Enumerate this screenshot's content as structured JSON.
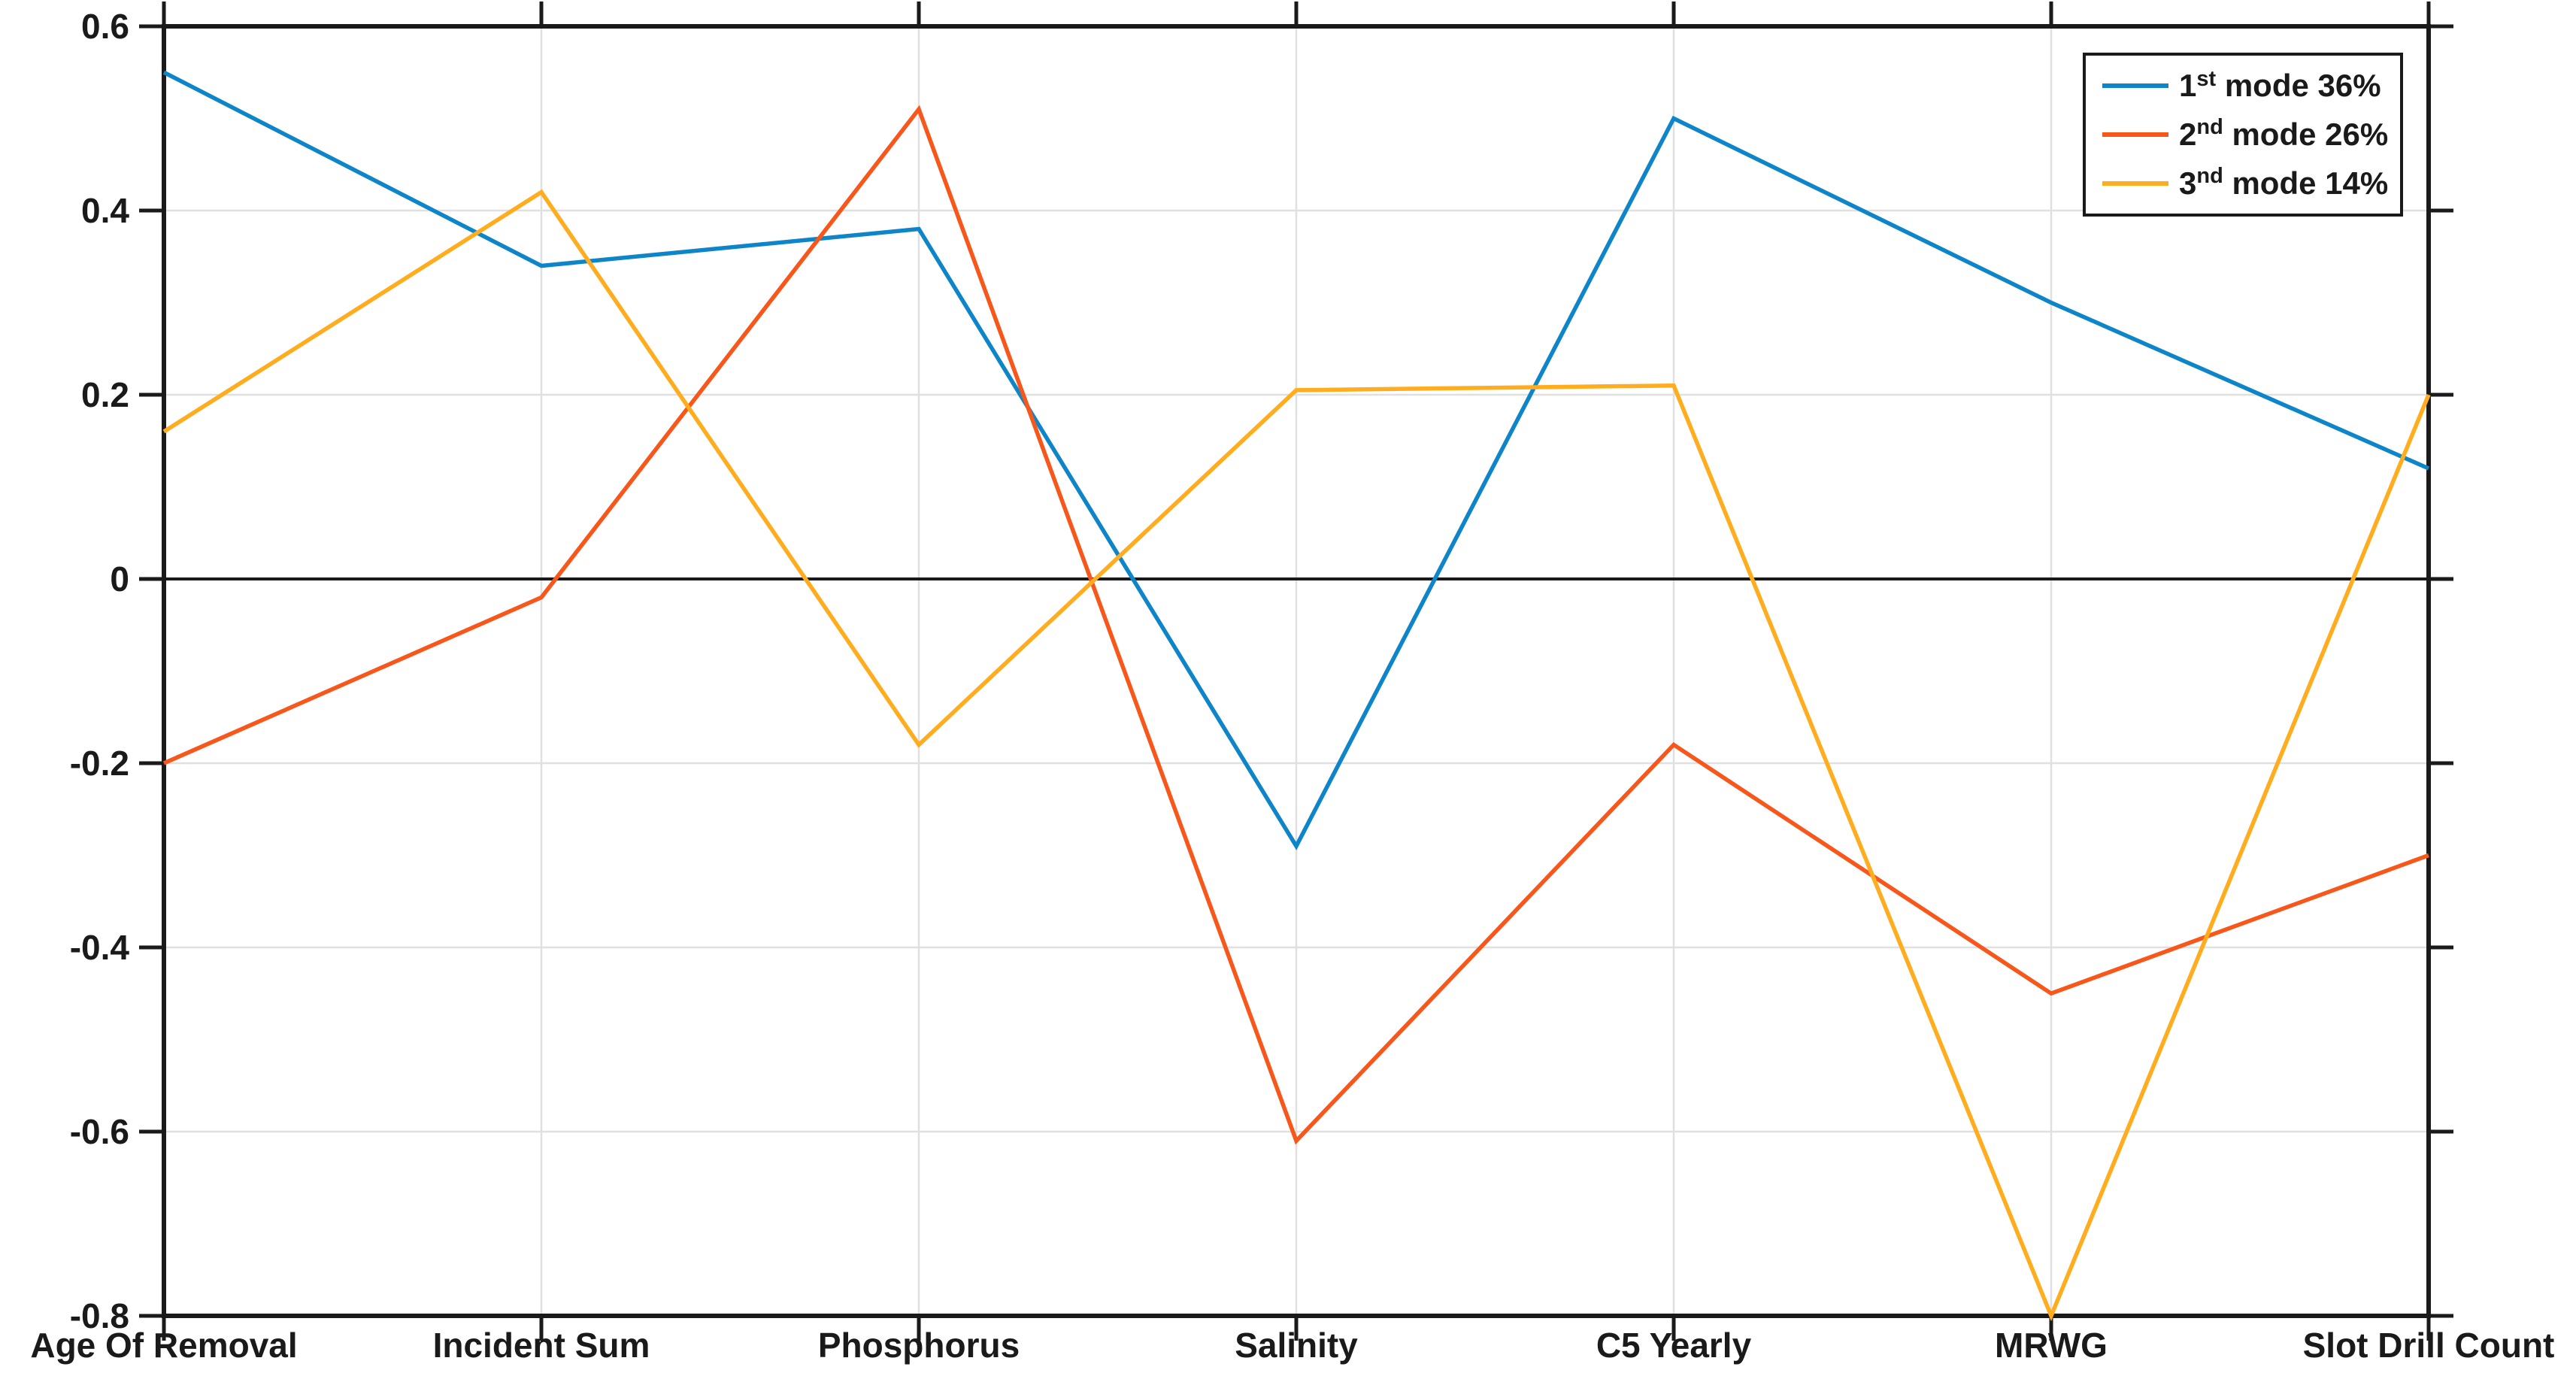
{
  "chart_data": {
    "type": "line",
    "title": "",
    "categories": [
      "Age Of Removal",
      "Incident Sum",
      "Phosphorus",
      "Salinity",
      "C5 Yearly",
      "MRWG",
      "Slot Drill Count"
    ],
    "series": [
      {
        "name": "1st mode 36%",
        "label_base": "1",
        "label_sup": "st",
        "label_rest": " mode 36%",
        "color": "#0d85c8",
        "values": [
          0.55,
          0.34,
          0.38,
          -0.29,
          0.5,
          0.3,
          0.12
        ]
      },
      {
        "name": "2nd mode 26%",
        "label_base": "2",
        "label_sup": "nd",
        "label_rest": " mode 26%",
        "color": "#f8571b",
        "values": [
          -0.2,
          -0.02,
          0.51,
          -0.61,
          -0.18,
          -0.45,
          -0.3
        ]
      },
      {
        "name": "3nd mode 14%",
        "label_base": "3",
        "label_sup": "nd",
        "label_rest": " mode 14%",
        "color": "#ffac1e",
        "values": [
          0.16,
          0.42,
          -0.18,
          0.205,
          0.21,
          -0.8,
          0.2
        ]
      }
    ],
    "ylim": [
      -0.8,
      0.6
    ],
    "ytick_step": 0.2,
    "y_tick_labels": [
      "0.6",
      "0.4",
      "0.2",
      "0",
      "-0.2",
      "-0.4",
      "-0.6",
      "-0.8"
    ],
    "grid": true,
    "zero_line": true,
    "legend_position": "top-right",
    "axis_color": "#1a1a1a",
    "grid_color": "#e0e0e0",
    "background_color": "#ffffff"
  }
}
